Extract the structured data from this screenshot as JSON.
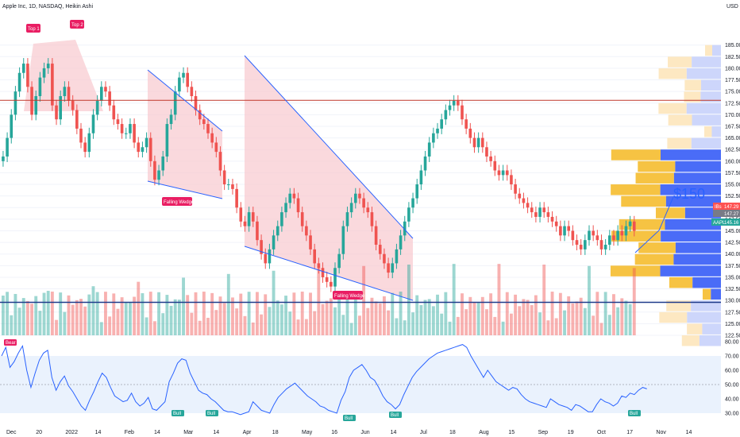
{
  "header": {
    "title": "Apple Inc, 1D, NASDAQ, Heikin Ashi",
    "currency": "USD"
  },
  "annotations": {
    "top1": "Top 1",
    "top2": "Top 2",
    "wedge1": "Falling Wedge",
    "wedge2": "Falling Wedge",
    "target": "$150"
  },
  "price_labels": [
    {
      "text": "147.29",
      "color": "#ff5252",
      "value": 147.29
    },
    {
      "text": "147.27",
      "color": "#787b86",
      "value": 147.27
    },
    {
      "text": "145.16",
      "color": "#26a69a",
      "value": 145.16
    }
  ],
  "price_label_tags": {
    "ticker": "AAPL",
    "mini": "IBs"
  },
  "rsi_tags": [
    "Bear",
    "Bull",
    "Bull",
    "Bull",
    "Bull",
    "Bull"
  ],
  "colors": {
    "up": "#26a69a",
    "down": "#ef5350",
    "rsi": "#2962ff",
    "resistance": "#c0392b",
    "support": "#1e3a8a",
    "wedge_fill": "#f8c9cf",
    "vp_up": "#f6c343",
    "vp_down": "#4a6cf7"
  },
  "chart_data": [
    {
      "type": "candlestick",
      "title": "Apple Inc, 1D, NASDAQ, Heikin Ashi",
      "x_ticks": [
        "Dec",
        "20",
        "2022",
        "14",
        "Feb",
        "14",
        "Mar",
        "14",
        "Apr",
        "18",
        "May",
        "16",
        "Jun",
        "14",
        "Jul",
        "18",
        "Aug",
        "15",
        "Sep",
        "19",
        "Oct",
        "17",
        "Nov",
        "14"
      ],
      "y_ticks": [
        122.5,
        125,
        127.5,
        130,
        132.5,
        135,
        137.5,
        140,
        142.5,
        145,
        147.5,
        150,
        152.5,
        155,
        157.5,
        160,
        162.5,
        165,
        167.5,
        170,
        172.5,
        175,
        177.5,
        180,
        182.5,
        185
      ],
      "ylim": [
        122.5,
        187
      ],
      "close_series": [
        161,
        165,
        170,
        175,
        179,
        181,
        176,
        170,
        174,
        178,
        180,
        181,
        172,
        169,
        174,
        176,
        173,
        171,
        167,
        164,
        162,
        166,
        170,
        173,
        176,
        175,
        172,
        169,
        168,
        166,
        166,
        168,
        164,
        162,
        163,
        165,
        160,
        156,
        158,
        161,
        168,
        170,
        175,
        178,
        179,
        176,
        174,
        171,
        169,
        168,
        166,
        164,
        162,
        158,
        155,
        155,
        154,
        150,
        147,
        146,
        149,
        147,
        143,
        140,
        138,
        141,
        144,
        146,
        149,
        151,
        153,
        152,
        149,
        146,
        144,
        141,
        138,
        137,
        135,
        134,
        133,
        137,
        140,
        146,
        149,
        151,
        153,
        152,
        150,
        149,
        146,
        142,
        140,
        138,
        136,
        138,
        141,
        144,
        147,
        150,
        152,
        155,
        158,
        161,
        164,
        166,
        167,
        169,
        171,
        172,
        173,
        172,
        169,
        167,
        165,
        163,
        165,
        163,
        161,
        160,
        158,
        157,
        158,
        157,
        155,
        153,
        152,
        151,
        150,
        149,
        148,
        150,
        149,
        148,
        147,
        146,
        144,
        146,
        145,
        143,
        142,
        141,
        143,
        145,
        144,
        143,
        141,
        142,
        144,
        143,
        145,
        144,
        146,
        147,
        145
      ],
      "resistance": 173.1,
      "support": 129.6,
      "target_label": "$150",
      "volume_note": "volume histogram"
    },
    {
      "type": "line",
      "name": "RSI",
      "y_ticks": [
        30,
        40,
        50,
        60,
        70,
        80
      ],
      "ylim": [
        30,
        80
      ],
      "band": [
        30,
        70
      ],
      "midline": 50,
      "values": [
        70,
        76,
        62,
        66,
        72,
        77,
        60,
        48,
        58,
        67,
        72,
        74,
        55,
        46,
        52,
        56,
        49,
        45,
        40,
        35,
        32,
        39,
        45,
        52,
        58,
        55,
        48,
        42,
        40,
        38,
        39,
        44,
        38,
        35,
        37,
        41,
        33,
        32,
        35,
        38,
        52,
        58,
        65,
        68,
        67,
        58,
        52,
        46,
        44,
        43,
        40,
        38,
        35,
        32,
        31,
        31,
        30,
        29,
        30,
        31,
        38,
        35,
        32,
        31,
        30,
        36,
        41,
        44,
        47,
        49,
        51,
        48,
        45,
        42,
        40,
        38,
        35,
        34,
        32,
        31,
        30,
        39,
        45,
        55,
        60,
        62,
        64,
        60,
        55,
        53,
        48,
        42,
        38,
        36,
        33,
        36,
        43,
        49,
        55,
        59,
        62,
        65,
        68,
        70,
        72,
        73,
        74,
        75,
        76,
        77,
        78,
        76,
        70,
        65,
        60,
        55,
        60,
        56,
        52,
        50,
        48,
        46,
        48,
        47,
        43,
        40,
        38,
        37,
        36,
        35,
        34,
        40,
        38,
        36,
        35,
        34,
        32,
        36,
        35,
        33,
        31,
        31,
        36,
        40,
        38,
        37,
        35,
        37,
        42,
        41,
        44,
        43,
        46,
        48,
        47
      ]
    }
  ]
}
